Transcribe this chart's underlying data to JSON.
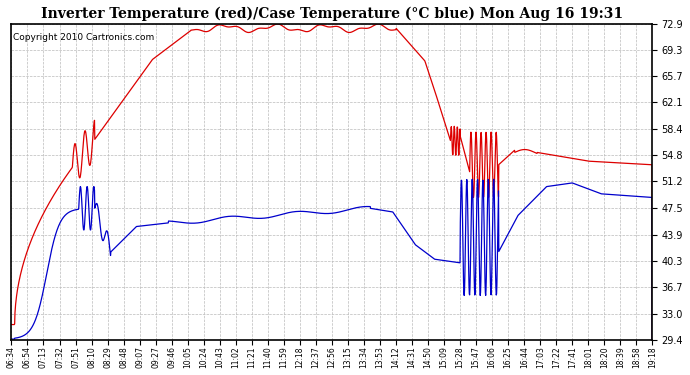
{
  "title": "Inverter Temperature (red)/Case Temperature (°C blue) Mon Aug 16 19:31",
  "copyright": "Copyright 2010 Cartronics.com",
  "y_ticks": [
    29.4,
    33.0,
    36.7,
    40.3,
    43.9,
    47.5,
    51.2,
    54.8,
    58.4,
    62.1,
    65.7,
    69.3,
    72.9
  ],
  "y_min": 29.4,
  "y_max": 72.9,
  "x_labels": [
    "06:34",
    "06:54",
    "07:13",
    "07:32",
    "07:51",
    "08:10",
    "08:29",
    "08:48",
    "09:07",
    "09:27",
    "09:46",
    "10:05",
    "10:24",
    "10:43",
    "11:02",
    "11:21",
    "11:40",
    "11:59",
    "12:18",
    "12:37",
    "12:56",
    "13:15",
    "13:34",
    "13:53",
    "14:12",
    "14:31",
    "14:50",
    "15:09",
    "15:28",
    "15:47",
    "16:06",
    "16:25",
    "16:44",
    "17:03",
    "17:22",
    "17:41",
    "18:01",
    "18:20",
    "18:39",
    "18:58",
    "19:18"
  ],
  "bg_color": "#ffffff",
  "plot_bg": "#ffffff",
  "grid_color": "#bbbbbb",
  "red_color": "#dd0000",
  "blue_color": "#0000cc",
  "title_fontsize": 10,
  "copyright_fontsize": 6.5
}
